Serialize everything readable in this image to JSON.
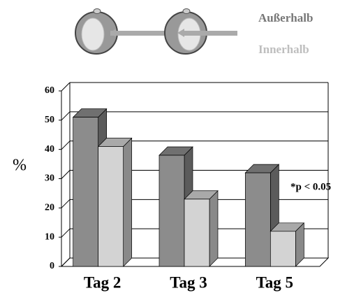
{
  "chart_data": {
    "type": "bar3d",
    "y_label": "%",
    "categories": [
      "Tag 2",
      "Tag 3",
      "Tag 5"
    ],
    "series": [
      {
        "name": "Außerhalb",
        "color": "#8c8c8c",
        "values": [
          51,
          38,
          32
        ]
      },
      {
        "name": "Innerhalb",
        "color": "#d3d3d3",
        "values": [
          41,
          23,
          12
        ]
      }
    ],
    "annotation": "*p < 0.05",
    "ylim": [
      0,
      60
    ],
    "yticks": [
      0,
      10,
      20,
      30,
      40,
      50,
      60
    ],
    "grid": true
  }
}
